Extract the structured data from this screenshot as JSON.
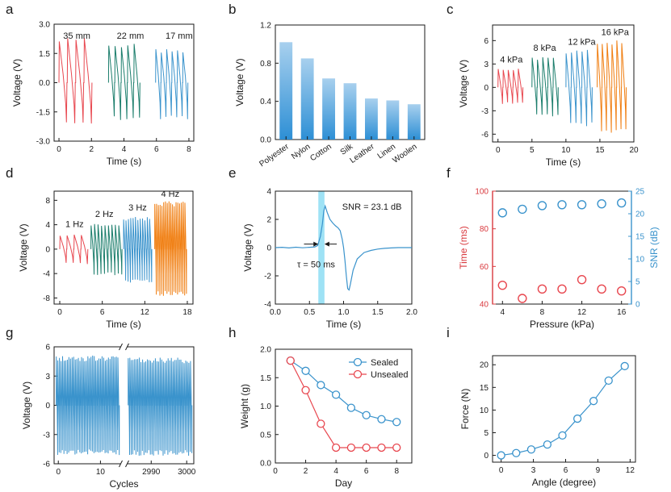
{
  "figure": {
    "panel_labels": [
      "a",
      "b",
      "c",
      "d",
      "e",
      "f",
      "g",
      "h",
      "i"
    ]
  },
  "colors": {
    "red": "#e8474f",
    "green": "#1a7d6b",
    "blue": "#3a93cc",
    "orange": "#f07d0f",
    "axis": "#1a1a1a",
    "bar_top": "#a8d0ee",
    "bar_bottom": "#2d8fd5",
    "highlight": "#9ee2f5",
    "f_left_axis": "#d9393e",
    "f_right_axis": "#3a93cc"
  },
  "chart_data": [
    {
      "panel": "a",
      "type": "line",
      "xlabel": "Time (s)",
      "ylabel": "Voltage (V)",
      "xlim": [
        -0.3,
        8.3
      ],
      "ylim": [
        -3.0,
        3.0
      ],
      "xticks": [
        0,
        2,
        4,
        6,
        8
      ],
      "yticks": [
        -3.0,
        -1.5,
        0.0,
        1.5,
        3.0
      ],
      "ytick_labels": [
        "-3.0",
        "-1.5",
        "0.0",
        "1.5",
        "3.0"
      ],
      "annotations": [
        "35 mm",
        "22 mm",
        "17 mm"
      ],
      "series": [
        {
          "label": "35 mm",
          "color": "red",
          "t_start": 0.0,
          "t_end": 2.05,
          "cycles": 4,
          "peak": 2.25,
          "trough": -2.2
        },
        {
          "label": "22 mm",
          "color": "green",
          "t_start": 3.05,
          "t_end": 5.0,
          "cycles": 5,
          "peak": 1.95,
          "trough": -1.9
        },
        {
          "label": "17 mm",
          "color": "blue",
          "t_start": 5.95,
          "t_end": 7.95,
          "cycles": 6,
          "peak": 1.7,
          "trough": -1.85
        }
      ]
    },
    {
      "panel": "b",
      "type": "bar",
      "categories": [
        "Polyester",
        "Nylon",
        "Cotton",
        "Silk",
        "Leather",
        "Linen",
        "Woolen"
      ],
      "values": [
        1.02,
        0.85,
        0.64,
        0.59,
        0.43,
        0.41,
        0.37
      ],
      "ylabel": "Voltage (V)",
      "ylim": [
        0.0,
        1.2
      ],
      "yticks": [
        0.0,
        0.4,
        0.8,
        1.2
      ],
      "ytick_labels": [
        "0.0",
        "0.4",
        "0.8",
        "1.2"
      ]
    },
    {
      "panel": "c",
      "type": "line",
      "xlabel": "Time (s)",
      "ylabel": "Voltage (V)",
      "xlim": [
        -0.8,
        20
      ],
      "ylim": [
        -7,
        8
      ],
      "xticks": [
        0,
        5,
        10,
        15,
        20
      ],
      "yticks": [
        -6,
        -3,
        0,
        3,
        6
      ],
      "ytick_labels": [
        "-6",
        "-3",
        "0",
        "3",
        "6"
      ],
      "annotations": [
        "4 kPa",
        "8 kPa",
        "12 kPa",
        "16 kPa"
      ],
      "series": [
        {
          "label": "4 kPa",
          "color": "red",
          "t_start": 0.0,
          "t_end": 3.7,
          "cycles": 5,
          "peak": 2.4,
          "trough": -2.1
        },
        {
          "label": "8 kPa",
          "color": "green",
          "t_start": 5.0,
          "t_end": 8.9,
          "cycles": 5,
          "peak": 3.8,
          "trough": -3.8
        },
        {
          "label": "12 kPa",
          "color": "blue",
          "t_start": 10.0,
          "t_end": 13.9,
          "cycles": 5,
          "peak": 4.8,
          "trough": -4.9
        },
        {
          "label": "16 kPa",
          "color": "orange",
          "t_start": 14.6,
          "t_end": 18.9,
          "cycles": 6,
          "peak": 6.0,
          "trough": -5.9
        }
      ]
    },
    {
      "panel": "d",
      "type": "line",
      "xlabel": "Time (s)",
      "ylabel": "Voltage (V)",
      "xlim": [
        -0.8,
        18.8
      ],
      "ylim": [
        -9,
        9.5
      ],
      "xticks": [
        0,
        6,
        12,
        18
      ],
      "yticks": [
        -8,
        -4,
        0,
        4,
        8
      ],
      "ytick_labels": [
        "-8",
        "-4",
        "0",
        "4",
        "8"
      ],
      "annotations": [
        "1 Hz",
        "2 Hz",
        "3 Hz",
        "4 Hz"
      ],
      "series": [
        {
          "label": "1 Hz",
          "color": "red",
          "t_start": 0.0,
          "t_end": 4.0,
          "cycles": 4,
          "peak": 2.4,
          "trough": -2.4
        },
        {
          "label": "2 Hz",
          "color": "green",
          "t_start": 4.4,
          "t_end": 8.8,
          "cycles": 9,
          "peak": 4.2,
          "trough": -4.2
        },
        {
          "label": "3 Hz",
          "color": "blue",
          "t_start": 9.0,
          "t_end": 13.0,
          "cycles": 12,
          "peak": 5.2,
          "trough": -5.5
        },
        {
          "label": "4 Hz",
          "color": "orange",
          "t_start": 13.4,
          "t_end": 17.9,
          "cycles": 18,
          "peak": 7.8,
          "trough": -7.5
        }
      ]
    },
    {
      "panel": "e",
      "type": "line",
      "xlabel": "Time (s)",
      "ylabel": "Voltage (V)",
      "xlim": [
        0.0,
        2.0
      ],
      "ylim": [
        -4,
        4
      ],
      "xticks": [
        0.0,
        0.5,
        1.0,
        1.5,
        2.0
      ],
      "yticks": [
        -4,
        -2,
        0,
        2,
        4
      ],
      "xtick_labels": [
        "0.0",
        "0.5",
        "1.0",
        "1.5",
        "2.0"
      ],
      "ytick_labels": [
        "-4",
        "-2",
        "0",
        "2",
        "4"
      ],
      "annotations": [
        "SNR = 23.1 dB",
        "τ = 50 ms"
      ],
      "highlight_band": [
        0.63,
        0.72
      ],
      "x": [
        0.0,
        0.1,
        0.2,
        0.3,
        0.4,
        0.5,
        0.58,
        0.62,
        0.66,
        0.69,
        0.71,
        0.73,
        0.76,
        0.8,
        0.84,
        0.88,
        0.92,
        0.95,
        0.98,
        1.0,
        1.02,
        1.04,
        1.06,
        1.08,
        1.1,
        1.14,
        1.2,
        1.3,
        1.4,
        1.5,
        1.6,
        1.7,
        1.8,
        1.9,
        2.0
      ],
      "y": [
        0.0,
        0.02,
        -0.02,
        0.03,
        -0.01,
        0.02,
        0.05,
        0.15,
        0.8,
        1.7,
        2.6,
        2.95,
        2.5,
        2.0,
        1.75,
        1.55,
        1.4,
        1.2,
        0.6,
        0.0,
        -0.9,
        -2.0,
        -2.9,
        -3.0,
        -2.6,
        -1.6,
        -0.8,
        -0.35,
        -0.2,
        -0.1,
        -0.05,
        -0.02,
        0.0,
        0.0,
        0.0
      ]
    },
    {
      "panel": "f",
      "type": "scatter",
      "xlabel": "Pressure (kPa)",
      "ylabel_left": "Time (ms)",
      "ylabel_right": "SNR (dB)",
      "xlim": [
        3,
        17
      ],
      "ylim_left": [
        40,
        100
      ],
      "ylim_right": [
        0,
        25
      ],
      "xticks": [
        4,
        8,
        12,
        16
      ],
      "yticks_left": [
        40,
        60,
        80,
        100
      ],
      "yticks_right": [
        0,
        5,
        10,
        15,
        20,
        25
      ],
      "x": [
        4,
        6,
        8,
        10,
        12,
        14,
        16
      ],
      "series": [
        {
          "name": "Time",
          "axis": "left",
          "color": "red",
          "values": [
            50,
            43,
            48,
            48,
            53,
            48,
            47
          ]
        },
        {
          "name": "SNR",
          "axis": "right",
          "color": "blue",
          "values": [
            20.2,
            21.0,
            21.8,
            22.0,
            22.0,
            22.2,
            22.4
          ]
        }
      ]
    },
    {
      "panel": "g",
      "type": "line",
      "xlabel": "Cycles",
      "ylabel": "Voltage (V)",
      "ylim": [
        -6,
        6
      ],
      "yticks": [
        -6,
        -3,
        0,
        3,
        6
      ],
      "ytick_labels": [
        "-6",
        "-3",
        "0",
        "3",
        "6"
      ],
      "segments": [
        {
          "xlim": [
            -1,
            15
          ],
          "xticks": [
            0,
            10
          ],
          "cycles": 40,
          "peak": 5.0,
          "trough": -5.0
        },
        {
          "xlim": [
            2983,
            3002
          ],
          "xticks": [
            2990,
            3000
          ],
          "cycles": 40,
          "peak": 4.8,
          "trough": -5.1
        }
      ]
    },
    {
      "panel": "h",
      "type": "line",
      "xlabel": "Day",
      "ylabel": "Weight (g)",
      "xlim": [
        0,
        9
      ],
      "ylim": [
        0.0,
        2.0
      ],
      "xticks": [
        0,
        2,
        4,
        6,
        8
      ],
      "yticks": [
        0.0,
        0.5,
        1.0,
        1.5,
        2.0
      ],
      "ytick_labels": [
        "0.0",
        "0.5",
        "1.0",
        "1.5",
        "2.0"
      ],
      "x": [
        1,
        2,
        3,
        4,
        5,
        6,
        7,
        8
      ],
      "series": [
        {
          "name": "Sealed",
          "color": "blue",
          "values": [
            1.8,
            1.62,
            1.37,
            1.2,
            0.97,
            0.84,
            0.77,
            0.72
          ]
        },
        {
          "name": "Unsealed",
          "color": "red",
          "values": [
            1.8,
            1.28,
            0.69,
            0.27,
            0.27,
            0.27,
            0.27,
            0.27
          ]
        }
      ]
    },
    {
      "panel": "i",
      "type": "line",
      "xlabel": "Angle (degree)",
      "ylabel": "Force (N)",
      "xlim": [
        -0.8,
        12.5
      ],
      "ylim": [
        -1.5,
        22
      ],
      "xticks": [
        0,
        3,
        6,
        9,
        12
      ],
      "yticks": [
        0,
        5,
        10,
        15,
        20
      ],
      "x": [
        0,
        1.4,
        2.8,
        4.3,
        5.7,
        7.1,
        8.6,
        10.0,
        11.5
      ],
      "series": [
        {
          "color": "blue",
          "values": [
            0.0,
            0.5,
            1.3,
            2.4,
            4.4,
            8.1,
            12.0,
            16.5,
            19.7
          ]
        }
      ]
    }
  ]
}
